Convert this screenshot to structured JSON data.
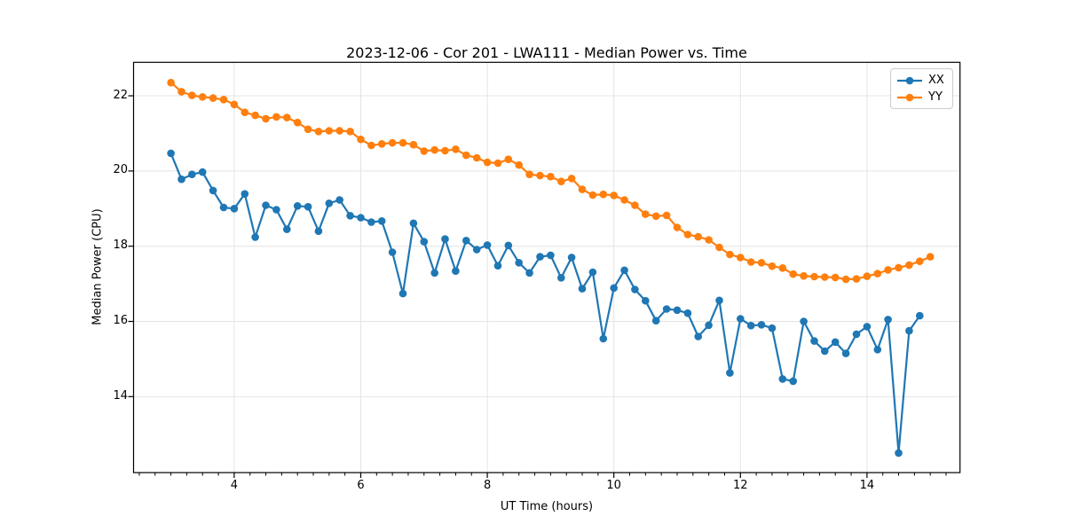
{
  "chart": {
    "title": "2023-12-06 - Cor 201 - LWA111 - Median Power vs. Time",
    "xlabel": "UT Time (hours)",
    "ylabel": "Median Power (CPU)"
  },
  "legend": {
    "position": "upper right",
    "items": [
      {
        "label": "XX"
      },
      {
        "label": "YY"
      }
    ]
  },
  "chart_data": {
    "type": "line",
    "title": "2023-12-06 - Cor 201 - LWA111 - Median Power vs. Time",
    "xlabel": "UT Time (hours)",
    "ylabel": "Median Power (CPU)",
    "xlim": [
      2.41,
      15.47
    ],
    "ylim": [
      11.98,
      22.89
    ],
    "x_major_ticks": [
      4,
      6,
      8,
      10,
      12,
      14
    ],
    "y_major_ticks": [
      14,
      16,
      18,
      20,
      22
    ],
    "x_minor_tick_step": 0.25,
    "grid": true,
    "grid_color": "#e4e4e4",
    "background": "#ffffff",
    "series": [
      {
        "name": "XX",
        "color": "#1f77b4",
        "marker": "o",
        "x": [
          3.0,
          3.167,
          3.333,
          3.5,
          3.667,
          3.833,
          4.0,
          4.167,
          4.333,
          4.5,
          4.667,
          4.833,
          5.0,
          5.167,
          5.333,
          5.5,
          5.667,
          5.833,
          6.0,
          6.167,
          6.333,
          6.5,
          6.667,
          6.833,
          7.0,
          7.167,
          7.333,
          7.5,
          7.667,
          7.833,
          8.0,
          8.167,
          8.333,
          8.5,
          8.667,
          8.833,
          9.0,
          9.167,
          9.333,
          9.5,
          9.667,
          9.833,
          10.0,
          10.167,
          10.333,
          10.5,
          10.667,
          10.833,
          11.0,
          11.167,
          11.333,
          11.5,
          11.667,
          11.833,
          12.0,
          12.167,
          12.333,
          12.5,
          12.667,
          12.833,
          13.0,
          13.167,
          13.333,
          13.5,
          13.667,
          13.833,
          14.0,
          14.167,
          14.333,
          14.5,
          14.667,
          14.833
        ],
        "values": [
          20.47,
          19.78,
          19.91,
          19.97,
          19.48,
          19.03,
          19.0,
          19.39,
          18.24,
          19.09,
          18.97,
          18.45,
          19.07,
          19.05,
          18.4,
          19.14,
          19.23,
          18.81,
          18.76,
          18.64,
          18.67,
          17.84,
          16.74,
          18.61,
          18.12,
          17.29,
          18.19,
          17.34,
          18.15,
          17.91,
          18.03,
          17.48,
          18.02,
          17.56,
          17.29,
          17.72,
          17.76,
          17.16,
          17.7,
          16.87,
          17.31,
          15.54,
          16.89,
          17.36,
          16.85,
          16.55,
          16.02,
          16.33,
          16.3,
          16.22,
          15.6,
          15.9,
          16.56,
          14.63,
          16.07,
          15.89,
          15.91,
          15.82,
          14.47,
          14.41,
          16.0,
          15.48,
          15.21,
          15.45,
          15.15,
          15.66,
          15.86,
          15.25,
          16.05,
          12.5,
          15.75,
          16.15
        ]
      },
      {
        "name": "YY",
        "color": "#ff7f0e",
        "marker": "o",
        "x": [
          3.0,
          3.167,
          3.333,
          3.5,
          3.667,
          3.833,
          4.0,
          4.167,
          4.333,
          4.5,
          4.667,
          4.833,
          5.0,
          5.167,
          5.333,
          5.5,
          5.667,
          5.833,
          6.0,
          6.167,
          6.333,
          6.5,
          6.667,
          6.833,
          7.0,
          7.167,
          7.333,
          7.5,
          7.667,
          7.833,
          8.0,
          8.167,
          8.333,
          8.5,
          8.667,
          8.833,
          9.0,
          9.167,
          9.333,
          9.5,
          9.667,
          9.833,
          10.0,
          10.167,
          10.333,
          10.5,
          10.667,
          10.833,
          11.0,
          11.167,
          11.333,
          11.5,
          11.667,
          11.833,
          12.0,
          12.167,
          12.333,
          12.5,
          12.667,
          12.833,
          13.0,
          13.167,
          13.333,
          13.5,
          13.667,
          13.833,
          14.0,
          14.167,
          14.333,
          14.5,
          14.667,
          14.833,
          15.0
        ],
        "values": [
          22.35,
          22.11,
          22.01,
          21.97,
          21.94,
          21.9,
          21.77,
          21.56,
          21.48,
          21.39,
          21.44,
          21.42,
          21.29,
          21.11,
          21.05,
          21.07,
          21.07,
          21.05,
          20.84,
          20.68,
          20.72,
          20.75,
          20.75,
          20.7,
          20.53,
          20.56,
          20.54,
          20.58,
          20.42,
          20.35,
          20.23,
          20.21,
          20.31,
          20.16,
          19.91,
          19.88,
          19.85,
          19.72,
          19.8,
          19.51,
          19.36,
          19.38,
          19.35,
          19.23,
          19.09,
          18.85,
          18.8,
          18.82,
          18.5,
          18.31,
          18.25,
          18.17,
          17.97,
          17.78,
          17.7,
          17.58,
          17.56,
          17.47,
          17.42,
          17.26,
          17.21,
          17.19,
          17.18,
          17.17,
          17.12,
          17.13,
          17.2,
          17.27,
          17.37,
          17.43,
          17.5,
          17.6,
          17.72
        ]
      }
    ]
  }
}
